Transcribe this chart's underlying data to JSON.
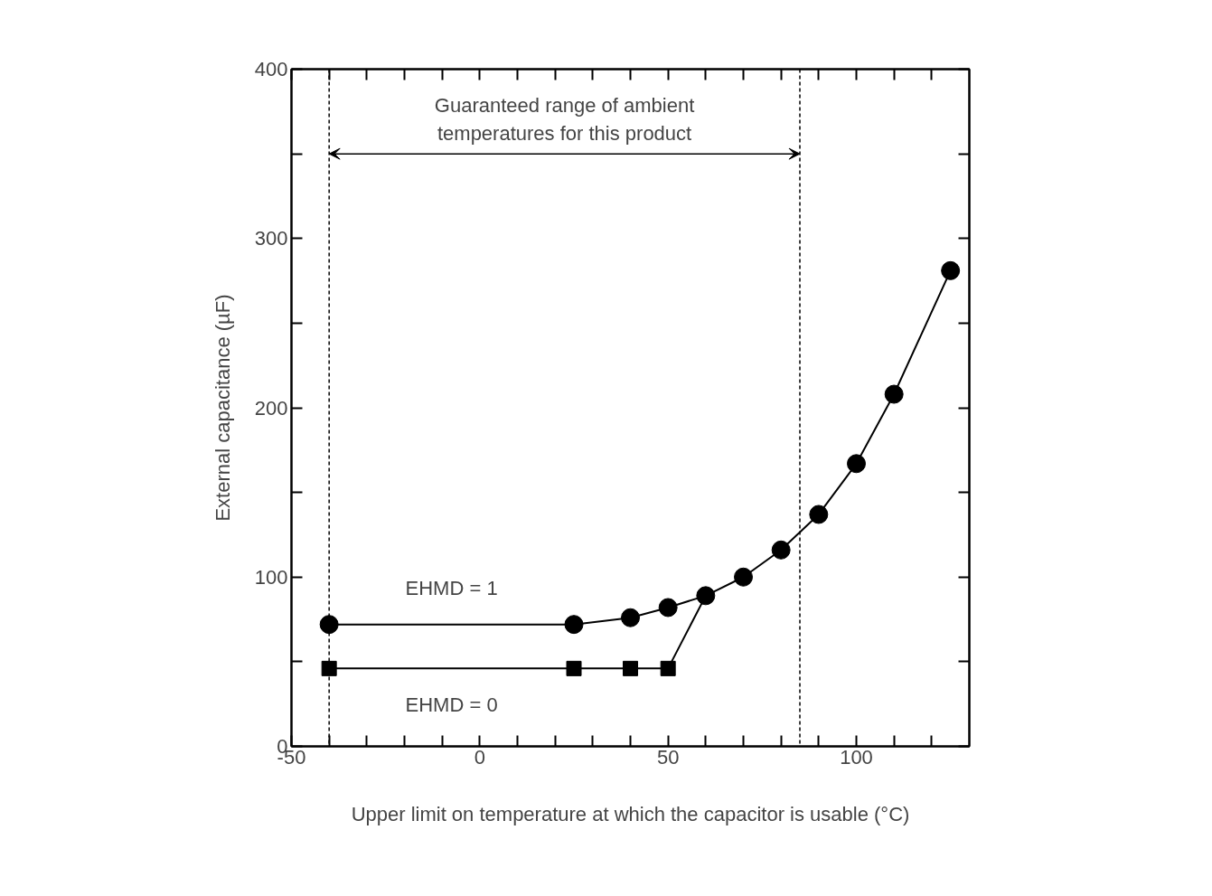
{
  "chart_data": {
    "type": "line",
    "xlabel": "Upper limit on temperature at which the capacitor is usable (°C)",
    "ylabel": "External capacitance (µF)",
    "series": [
      {
        "name": "EHMD = 1",
        "color": "#000000",
        "marker": "circle",
        "x": [
          -40,
          25,
          40,
          50,
          60,
          70,
          80,
          90,
          100,
          110,
          125
        ],
        "values": [
          72,
          72,
          76,
          82,
          89,
          100,
          116,
          137,
          167,
          208,
          281
        ]
      },
      {
        "name": "EHMD = 0",
        "color": "#000000",
        "marker": "square",
        "x": [
          -40,
          25,
          40,
          50,
          60
        ],
        "values": [
          46,
          46,
          46,
          46,
          89
        ]
      }
    ],
    "xlim": [
      -50,
      130
    ],
    "xticks": [
      -50,
      {
        "value": -40,
        "label": null
      },
      {
        "value": -30,
        "label": null
      },
      {
        "value": -20,
        "label": null
      },
      {
        "value": -10,
        "label": null
      },
      0,
      {
        "value": 10,
        "label": null
      },
      {
        "value": 20,
        "label": null
      },
      {
        "value": 30,
        "label": null
      },
      {
        "value": 40,
        "label": null
      },
      50,
      {
        "value": 60,
        "label": null
      },
      {
        "value": 70,
        "label": null
      },
      {
        "value": 80,
        "label": null
      },
      {
        "value": 90,
        "label": null
      },
      100,
      {
        "value": 110,
        "label": null
      },
      {
        "value": 120,
        "label": null
      }
    ],
    "ylim": [
      0,
      400
    ],
    "yticks": [
      0,
      {
        "value": 50,
        "label": null
      },
      100,
      {
        "value": 150,
        "label": null
      },
      200,
      {
        "value": 250,
        "label": null
      },
      300,
      {
        "value": 350,
        "label": null
      },
      400
    ],
    "ref_lines": [
      {
        "axis": "x",
        "value": -40,
        "line_style": "dashed",
        "color": "#000000"
      },
      {
        "axis": "x",
        "value": 85,
        "line_style": "dashed",
        "color": "#000000"
      }
    ],
    "annotations": [
      "Guaranteed range of ambient\ntemperatures for this product"
    ],
    "grid": false
  }
}
